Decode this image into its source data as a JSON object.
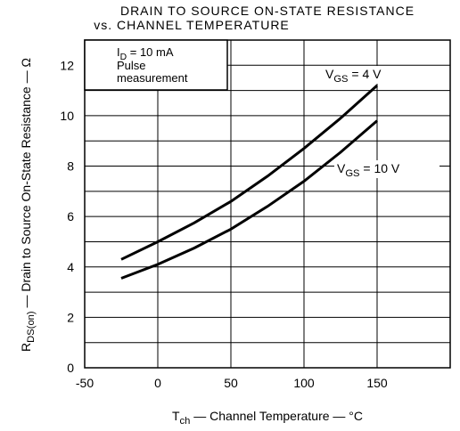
{
  "chart_data": {
    "type": "line",
    "title": [
      "DRAIN TO SOURCE ON-STATE RESISTANCE",
      "vs. CHANNEL TEMPERATURE"
    ],
    "x_label": [
      "T",
      "ch",
      " — Channel Temperature — °C"
    ],
    "y_label": [
      "R",
      "DS(on)",
      " — Drain to Source On-State Resistance — Ω"
    ],
    "annotation": {
      "first": [
        "I",
        "D",
        " = 10 mA"
      ],
      "lines": [
        "Pulse",
        "measurement"
      ]
    },
    "x": [
      -25,
      0,
      25,
      50,
      75,
      100,
      125,
      150
    ],
    "series": [
      {
        "label": [
          "V",
          "GS",
          " = 4 V"
        ],
        "color": "#000000",
        "values": [
          4.3,
          5.0,
          5.75,
          6.6,
          7.6,
          8.7,
          9.9,
          11.2
        ]
      },
      {
        "label": [
          "V",
          "GS",
          " = 10 V"
        ],
        "color": "#000000",
        "values": [
          3.55,
          4.1,
          4.75,
          5.5,
          6.4,
          7.4,
          8.55,
          9.8
        ]
      }
    ],
    "xlim": [
      -50,
      200
    ],
    "ylim": [
      0,
      13
    ],
    "xticks": [
      -50,
      0,
      50,
      100,
      150
    ],
    "yticks": [
      0,
      2,
      4,
      6,
      8,
      10,
      12
    ],
    "y_minor_grid": [
      1,
      3,
      5,
      7,
      9,
      11
    ],
    "grid": true
  }
}
